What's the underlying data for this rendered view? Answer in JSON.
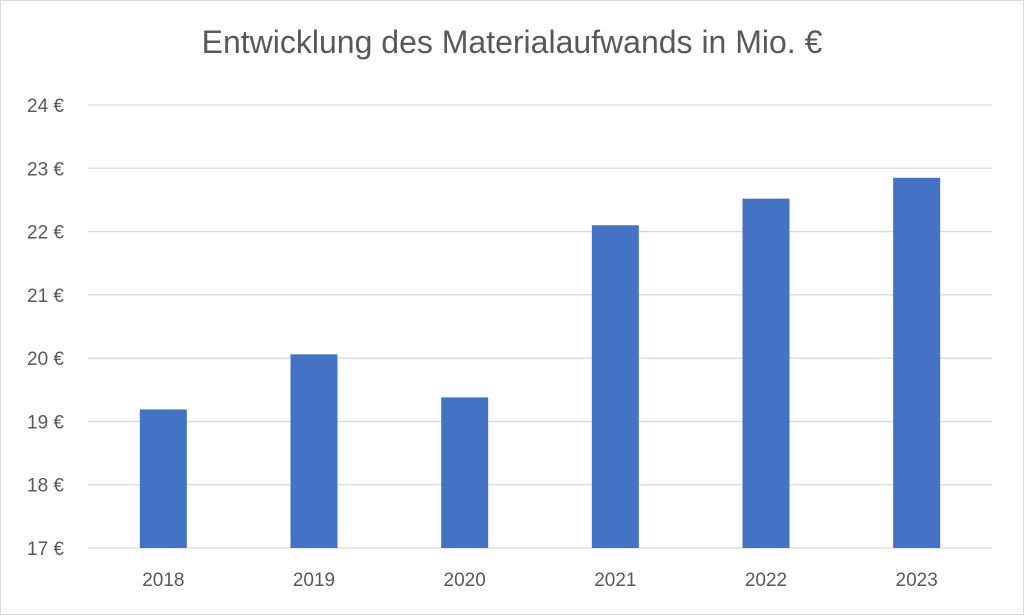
{
  "chart_data": {
    "type": "bar",
    "title": "Entwicklung des Materialaufwands in Mio. €",
    "xlabel": "",
    "ylabel": "",
    "categories": [
      "2018",
      "2019",
      "2020",
      "2021",
      "2022",
      "2023"
    ],
    "values": [
      19.19,
      20.06,
      19.38,
      22.1,
      22.52,
      22.85
    ],
    "ylim": [
      17,
      24
    ],
    "y_ticks": [
      17,
      18,
      19,
      20,
      21,
      22,
      23,
      24
    ],
    "y_tick_suffix": " €",
    "grid": true,
    "legend": "none",
    "bar_color": "#4472C4",
    "grid_color": "#d9d9d9"
  }
}
